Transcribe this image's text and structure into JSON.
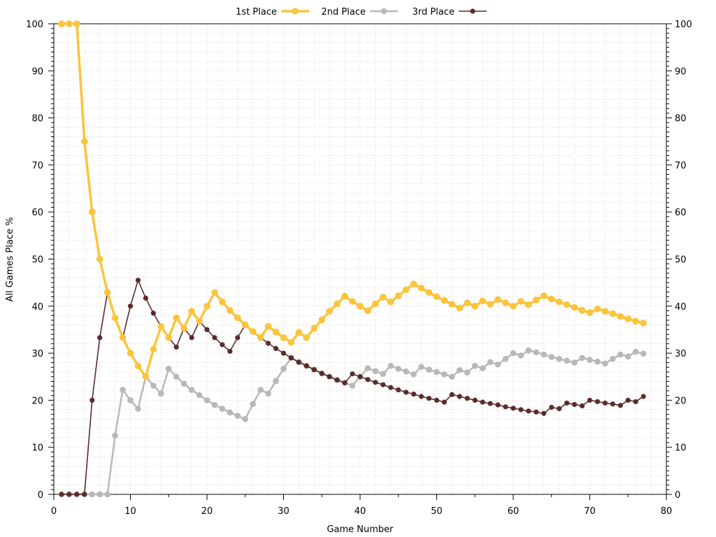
{
  "chart_data": {
    "type": "line",
    "title": "",
    "xlabel": "Game Number",
    "ylabel": "All Games Place %",
    "xlim": [
      0,
      80
    ],
    "ylim": [
      0,
      100
    ],
    "x_ticks": [
      "0",
      "10",
      "20",
      "30",
      "40",
      "50",
      "60",
      "70",
      "80"
    ],
    "y_ticks": [
      "0",
      "10",
      "20",
      "30",
      "40",
      "50",
      "60",
      "70",
      "80",
      "90",
      "100"
    ],
    "y_ticks_right": [
      "0",
      "10",
      "20",
      "30",
      "40",
      "50",
      "60",
      "70",
      "80",
      "90",
      "100"
    ],
    "grid": "dotted",
    "legend_position": "top-center",
    "series": [
      {
        "name": "1st Place",
        "color": "#fbc43c",
        "x": [
          1,
          2,
          3,
          4,
          5,
          6,
          7,
          8,
          9,
          10,
          11,
          12,
          13,
          14,
          15,
          16,
          17,
          18,
          19,
          20,
          21,
          22,
          23,
          24,
          25,
          26,
          27,
          28,
          29,
          30,
          31,
          32,
          33,
          34,
          35,
          36,
          37,
          38,
          39,
          40,
          41,
          42,
          43,
          44,
          45,
          46,
          47,
          48,
          49,
          50,
          51,
          52,
          53,
          54,
          55,
          56,
          57,
          58,
          59,
          60,
          61,
          62,
          63,
          64,
          65,
          66,
          67,
          68,
          69,
          70,
          71,
          72,
          73,
          74,
          75,
          76,
          77
        ],
        "values": [
          100,
          100,
          100,
          75,
          60,
          50,
          42.9,
          37.5,
          33.3,
          30,
          27.3,
          25,
          30.8,
          35.7,
          33.3,
          37.5,
          35.3,
          38.9,
          36.8,
          40,
          42.9,
          40.9,
          39.1,
          37.5,
          36,
          34.6,
          33.3,
          35.7,
          34.5,
          33.3,
          32.3,
          34.4,
          33.3,
          35.3,
          37.1,
          38.9,
          40.5,
          42.1,
          41,
          40,
          39,
          40.5,
          41.9,
          40.9,
          42.2,
          43.5,
          44.7,
          43.8,
          42.9,
          42,
          41.2,
          40.4,
          39.6,
          40.7,
          40,
          41.1,
          40.4,
          41.4,
          40.7,
          40,
          41,
          40.3,
          41.3,
          42.2,
          41.5,
          40.9,
          40.3,
          39.7,
          39.1,
          38.6,
          39.4,
          38.9,
          38.4,
          37.8,
          37.3,
          36.8,
          36.4
        ]
      },
      {
        "name": "2nd Place",
        "color": "#b8b8b8",
        "x": [
          1,
          2,
          3,
          4,
          5,
          6,
          7,
          8,
          9,
          10,
          11,
          12,
          13,
          14,
          15,
          16,
          17,
          18,
          19,
          20,
          21,
          22,
          23,
          24,
          25,
          26,
          27,
          28,
          29,
          30,
          31,
          32,
          33,
          34,
          35,
          36,
          37,
          38,
          39,
          40,
          41,
          42,
          43,
          44,
          45,
          46,
          47,
          48,
          49,
          50,
          51,
          52,
          53,
          54,
          55,
          56,
          57,
          58,
          59,
          60,
          61,
          62,
          63,
          64,
          65,
          66,
          67,
          68,
          69,
          70,
          71,
          72,
          73,
          74,
          75,
          76,
          77
        ],
        "values": [
          0,
          0,
          0,
          0,
          0,
          0,
          0,
          12.5,
          22.2,
          20,
          18.2,
          25,
          23.1,
          21.4,
          26.7,
          25,
          23.5,
          22.2,
          21.1,
          20,
          19,
          18.2,
          17.4,
          16.7,
          16,
          19.2,
          22.2,
          21.4,
          24.1,
          26.7,
          29,
          28.1,
          27.3,
          26.5,
          25.7,
          25,
          24.3,
          23.7,
          23.1,
          25,
          26.8,
          26.2,
          25.6,
          27.3,
          26.7,
          26.1,
          25.5,
          27.1,
          26.5,
          26,
          25.5,
          25,
          26.4,
          25.9,
          27.3,
          26.8,
          28.1,
          27.6,
          28.8,
          30,
          29.5,
          30.6,
          30.2,
          29.7,
          29.2,
          28.8,
          28.4,
          28,
          29,
          28.6,
          28.2,
          27.8,
          28.8,
          29.7,
          29.3,
          30.3,
          29.9
        ]
      },
      {
        "name": "3rd Place",
        "color": "#5c2b2b",
        "x": [
          1,
          2,
          3,
          4,
          5,
          6,
          7,
          8,
          9,
          10,
          11,
          12,
          13,
          14,
          15,
          16,
          17,
          18,
          19,
          20,
          21,
          22,
          23,
          24,
          25,
          26,
          27,
          28,
          29,
          30,
          31,
          32,
          33,
          34,
          35,
          36,
          37,
          38,
          39,
          40,
          41,
          42,
          43,
          44,
          45,
          46,
          47,
          48,
          49,
          50,
          51,
          52,
          53,
          54,
          55,
          56,
          57,
          58,
          59,
          60,
          61,
          62,
          63,
          64,
          65,
          66,
          67,
          68,
          69,
          70,
          71,
          72,
          73,
          74,
          75,
          76,
          77
        ],
        "values": [
          0,
          0,
          0,
          0,
          20,
          33.3,
          42.9,
          37.5,
          33.3,
          40,
          45.5,
          41.7,
          38.5,
          35.7,
          33.3,
          31.3,
          35.3,
          33.3,
          36.8,
          35,
          33.3,
          31.8,
          30.4,
          33.3,
          36,
          34.6,
          33.3,
          32.1,
          31,
          30,
          29,
          28.1,
          27.3,
          26.5,
          25.7,
          25,
          24.3,
          23.7,
          25.6,
          25,
          24.4,
          23.8,
          23.3,
          22.7,
          22.2,
          21.7,
          21.3,
          20.8,
          20.4,
          20,
          19.6,
          21.2,
          20.8,
          20.4,
          20,
          19.6,
          19.3,
          19,
          18.6,
          18.3,
          18,
          17.7,
          17.5,
          17.2,
          18.5,
          18.2,
          19.4,
          19.1,
          18.8,
          20,
          19.7,
          19.4,
          19.2,
          18.9,
          20,
          19.7,
          20.8
        ]
      }
    ]
  }
}
